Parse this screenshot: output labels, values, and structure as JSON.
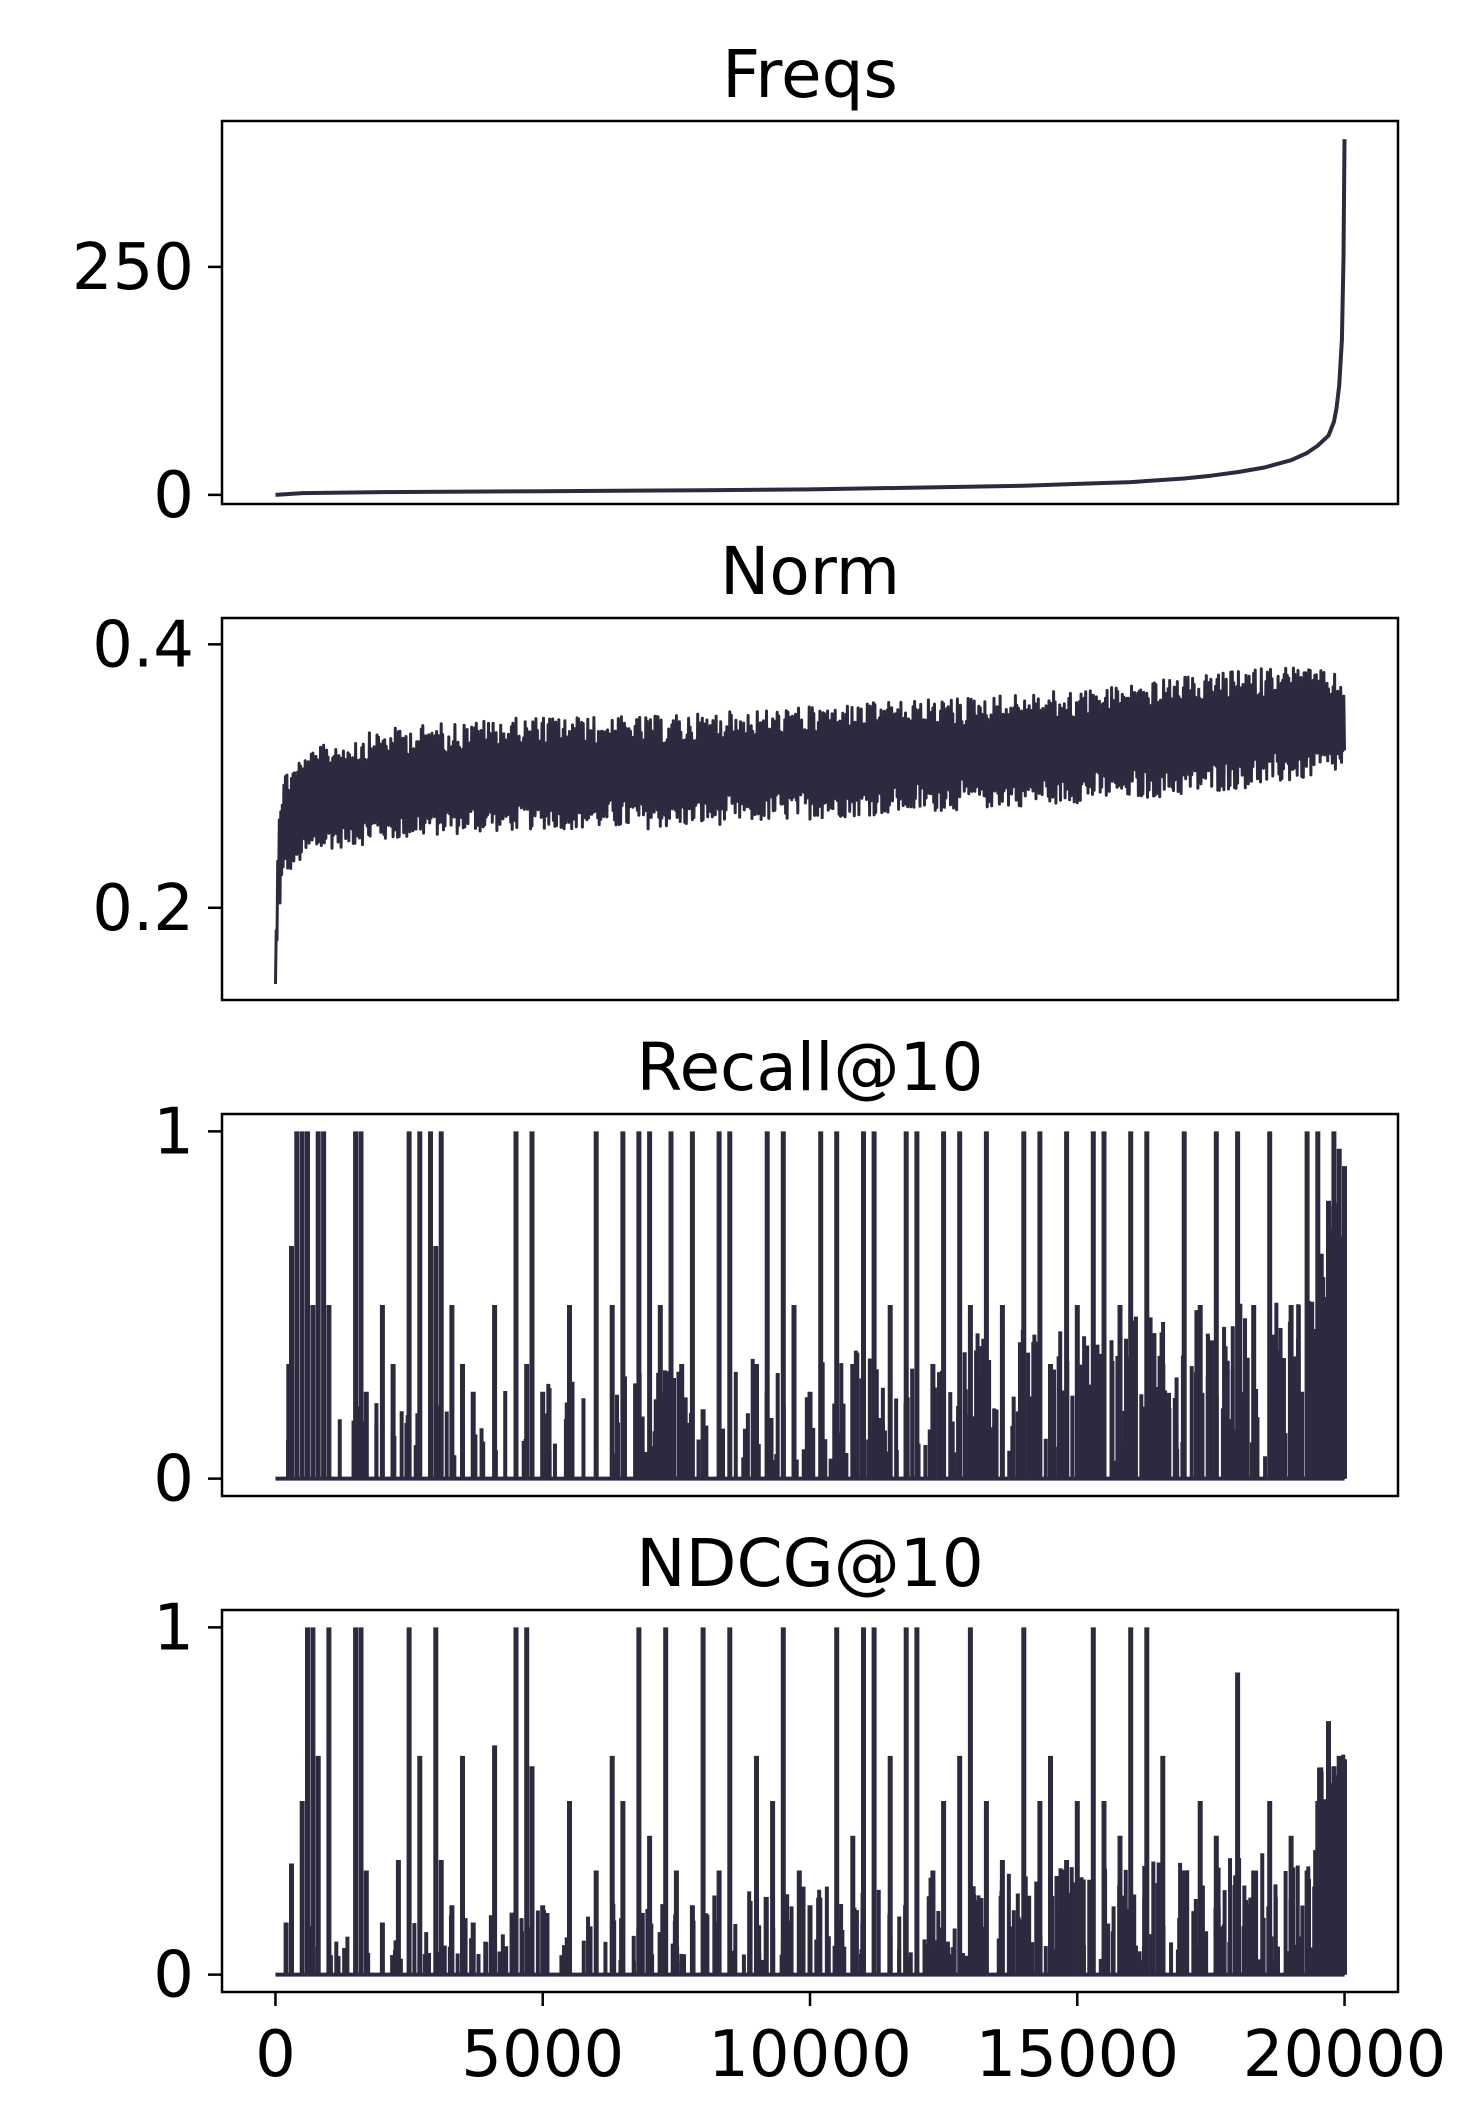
{
  "colors": {
    "line": "#2d2a40",
    "axes": "#000000",
    "background": "#ffffff"
  },
  "chart_data": [
    {
      "type": "line",
      "title": "Freqs",
      "xlabel": "",
      "ylabel": "",
      "xlim": [
        -1000,
        21000
      ],
      "ylim": [
        -10,
        410
      ],
      "yticks": [
        0,
        250
      ],
      "ytick_labels": [
        "0",
        "250"
      ],
      "x": [
        0,
        500,
        2000,
        5000,
        8000,
        10000,
        12000,
        14000,
        15000,
        16000,
        17000,
        17500,
        18000,
        18500,
        19000,
        19300,
        19500,
        19700,
        19800,
        19850,
        19900,
        19950,
        19980,
        20000
      ],
      "values": [
        0,
        2,
        3,
        4,
        5,
        6,
        8,
        10,
        12,
        14,
        18,
        21,
        25,
        30,
        38,
        46,
        54,
        65,
        80,
        95,
        120,
        170,
        260,
        390
      ]
    },
    {
      "type": "line",
      "title": "Norm",
      "xlabel": "",
      "ylabel": "",
      "xlim": [
        -1000,
        21000
      ],
      "ylim": [
        0.13,
        0.42
      ],
      "yticks": [
        0.2,
        0.4
      ],
      "ytick_labels": [
        "0.2",
        "0.4"
      ],
      "x": [
        0,
        50,
        100,
        200,
        500,
        1000,
        2000,
        3000,
        5000,
        7000,
        9000,
        11000,
        13000,
        15000,
        17000,
        19000,
        20000
      ],
      "values_low": [
        0.14,
        0.18,
        0.2,
        0.22,
        0.23,
        0.24,
        0.245,
        0.25,
        0.255,
        0.255,
        0.26,
        0.265,
        0.27,
        0.275,
        0.28,
        0.29,
        0.3
      ],
      "values_high": [
        0.15,
        0.28,
        0.3,
        0.31,
        0.32,
        0.33,
        0.34,
        0.345,
        0.35,
        0.35,
        0.355,
        0.36,
        0.365,
        0.37,
        0.38,
        0.39,
        0.38
      ]
    },
    {
      "type": "line",
      "title": "Recall@10",
      "xlabel": "",
      "ylabel": "",
      "xlim": [
        -1000,
        21000
      ],
      "ylim": [
        -0.05,
        1.05
      ],
      "yticks": [
        0,
        1
      ],
      "ytick_labels": [
        "0",
        "1"
      ],
      "x": [
        0,
        200,
        250,
        300,
        400,
        500,
        600,
        700,
        800,
        900,
        1000,
        1500,
        1600,
        1700,
        2000,
        2200,
        2500,
        2700,
        2900,
        3000,
        3100,
        3300,
        3500,
        3700,
        4100,
        4500,
        4700,
        4800,
        5000,
        5500,
        6000,
        6300,
        6500,
        6800,
        7000,
        7200,
        7400,
        7600,
        7800,
        8000,
        8300,
        8500,
        9000,
        9200,
        9500,
        9700,
        10000,
        10200,
        10500,
        10800,
        11000,
        11200,
        11500,
        11800,
        12000,
        12300,
        12500,
        12800,
        13000,
        13300,
        13600,
        14000,
        14300,
        14500,
        14800,
        15000,
        15300,
        15500,
        15800,
        16000,
        16300,
        16600,
        17000,
        17300,
        17600,
        18000,
        18300,
        18600,
        19000,
        19300,
        19500,
        19700,
        19800,
        19900,
        20000
      ],
      "values": [
        0,
        0,
        0.33,
        0.67,
        1,
        1,
        1,
        0.5,
        1,
        1,
        0.5,
        1,
        1,
        0.25,
        0.5,
        0.33,
        1,
        1,
        1,
        0.67,
        1,
        0.5,
        0.33,
        0.25,
        0.5,
        1,
        0.33,
        1,
        0.25,
        0.5,
        1,
        0.5,
        1,
        1,
        1,
        0.5,
        1,
        0.33,
        1,
        0.2,
        1,
        1,
        0.33,
        1,
        1,
        0.5,
        0.25,
        1,
        1,
        0.33,
        1,
        1,
        0.5,
        1,
        1,
        0.33,
        1,
        1,
        0.5,
        1,
        0.5,
        1,
        1,
        0.33,
        1,
        0.5,
        1,
        1,
        0.5,
        1,
        1,
        0.33,
        1,
        0.5,
        1,
        1,
        0.5,
        1,
        0.5,
        1,
        1,
        0.8,
        1,
        0.95,
        0.9
      ]
    },
    {
      "type": "line",
      "title": "NDCG@10",
      "xlabel": "",
      "ylabel": "",
      "xlim": [
        -1000,
        21000
      ],
      "ylim": [
        -0.05,
        1.05
      ],
      "yticks": [
        0,
        1
      ],
      "ytick_labels": [
        "0",
        "1"
      ],
      "xticks": [
        0,
        5000,
        10000,
        15000,
        20000
      ],
      "xtick_labels": [
        "0",
        "5000",
        "10000",
        "15000",
        "20000"
      ],
      "x": [
        0,
        200,
        300,
        500,
        600,
        700,
        800,
        1000,
        1500,
        1600,
        1700,
        2000,
        2300,
        2500,
        2700,
        3000,
        3100,
        3300,
        3500,
        3700,
        4100,
        4500,
        4700,
        4800,
        5000,
        5500,
        6000,
        6300,
        6500,
        6800,
        7000,
        7300,
        7500,
        7800,
        8000,
        8300,
        8500,
        9000,
        9300,
        9500,
        9800,
        10000,
        10500,
        10800,
        11000,
        11200,
        11500,
        11800,
        12000,
        12300,
        12500,
        12800,
        13000,
        13300,
        13600,
        14000,
        14300,
        14500,
        14800,
        15000,
        15300,
        15500,
        15800,
        16000,
        16300,
        16600,
        17000,
        17300,
        17600,
        18000,
        18300,
        18600,
        19000,
        19300,
        19500,
        19700,
        19800,
        19900,
        20000
      ],
      "values": [
        0,
        0.15,
        0.32,
        0.5,
        1,
        1,
        0.63,
        1,
        1,
        1,
        0.3,
        0.15,
        0.33,
        1,
        0.63,
        1,
        0.33,
        0.2,
        0.63,
        0.15,
        0.66,
        1,
        1,
        0.6,
        0.2,
        0.5,
        0.3,
        0.63,
        0.5,
        1,
        0.4,
        1,
        0.3,
        0.2,
        1,
        0.3,
        1,
        0.63,
        0.5,
        1,
        0.3,
        0.2,
        1,
        0.4,
        1,
        1,
        0.63,
        1,
        1,
        0.3,
        0.5,
        0.63,
        1,
        0.5,
        0.33,
        1,
        0.5,
        0.63,
        0.33,
        0.5,
        1,
        0.5,
        0.4,
        1,
        1,
        0.63,
        0.3,
        0.5,
        0.4,
        0.87,
        0.3,
        0.5,
        0.4,
        0.3,
        0.5,
        0.73,
        0.6,
        0.63,
        0.62
      ]
    }
  ]
}
